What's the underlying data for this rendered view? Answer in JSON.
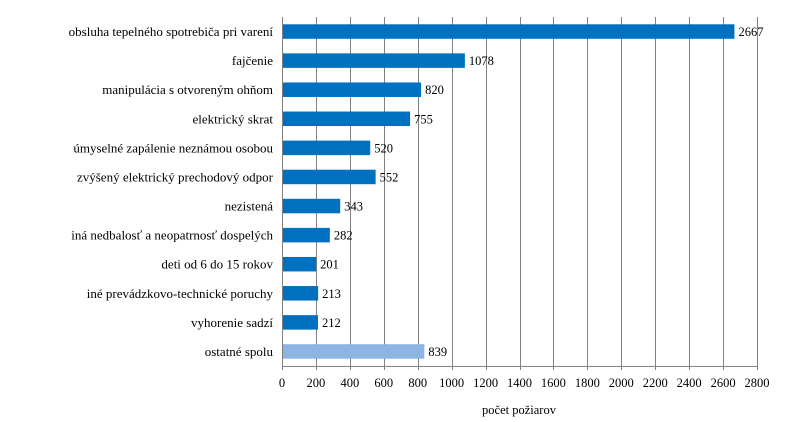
{
  "chart_data": {
    "type": "bar",
    "orientation": "horizontal",
    "categories": [
      "obsluha tepelného spotrebiča pri varení",
      "fajčenie",
      "manipulácia s otvoreným ohňom",
      "elektrický skrat",
      "úmyselné zapálenie neznámou osobou",
      "zvýšený elektrický prechodový odpor",
      "nezistená",
      "iná nedbalosť a neopatrnosť dospelých",
      "deti od 6 do 15 rokov",
      "iné prevádzkovo-technické poruchy",
      "vyhorenie sadzí",
      "ostatné spolu"
    ],
    "values": [
      2667,
      1078,
      820,
      755,
      520,
      552,
      343,
      282,
      201,
      213,
      212,
      839
    ],
    "value_labels": [
      "2667",
      "1078",
      "820",
      "755",
      "520",
      "552",
      "343",
      "282",
      "201",
      "213",
      "212",
      "839"
    ],
    "bar_colors": [
      "#0070c0",
      "#0070c0",
      "#0070c0",
      "#0070c0",
      "#0070c0",
      "#0070c0",
      "#0070c0",
      "#0070c0",
      "#0070c0",
      "#0070c0",
      "#0070c0",
      "#8db4e2"
    ],
    "xlabel": "počet požiarov",
    "ylabel": "",
    "title": "",
    "xlim": [
      0,
      2800
    ],
    "xticks": [
      0,
      200,
      400,
      600,
      800,
      1000,
      1200,
      1400,
      1600,
      1800,
      2000,
      2200,
      2400,
      2600,
      2800
    ],
    "grid": true,
    "grid_color": "#808080",
    "legend": false
  }
}
